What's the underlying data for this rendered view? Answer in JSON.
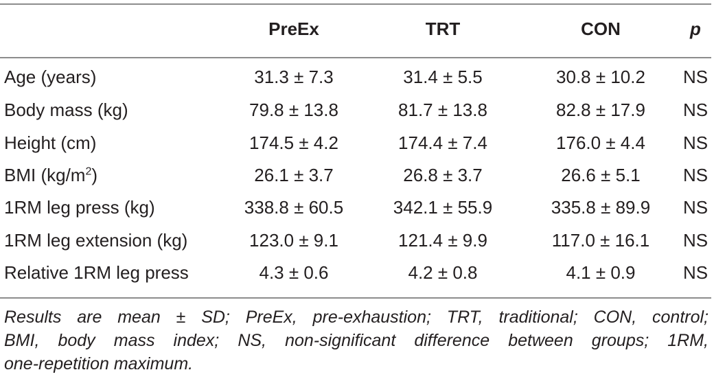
{
  "table": {
    "headers": [
      "PreEx",
      "TRT",
      "CON",
      "p"
    ],
    "rows": [
      {
        "label": "Age (years)",
        "preex": "31.3 ± 7.3",
        "trt": "31.4 ± 5.5",
        "con": "30.8 ± 10.2",
        "p": "NS"
      },
      {
        "label": "Body mass (kg)",
        "preex": "79.8 ± 13.8",
        "trt": "81.7 ± 13.8",
        "con": "82.8 ± 17.9",
        "p": "NS"
      },
      {
        "label": "Height (cm)",
        "preex": "174.5 ± 4.2",
        "trt": "174.4 ± 7.4",
        "con": "176.0 ± 4.4",
        "p": "NS"
      },
      {
        "label_main": "BMI (kg/m",
        "label_sup": "2",
        "label_end": ")",
        "preex": "26.1 ± 3.7",
        "trt": "26.8 ± 3.7",
        "con": "26.6 ± 5.1",
        "p": "NS"
      },
      {
        "label": "1RM leg press (kg)",
        "preex": "338.8 ± 60.5",
        "trt": "342.1 ± 55.9",
        "con": "335.8 ± 89.9",
        "p": "NS"
      },
      {
        "label": "1RM leg extension (kg)",
        "preex": "123.0 ± 9.1",
        "trt": "121.4 ± 9.9",
        "con": "117.0 ± 16.1",
        "p": "NS"
      },
      {
        "label": "Relative 1RM leg press",
        "preex": "4.3 ± 0.6",
        "trt": "4.2 ± 0.8",
        "con": "4.1 ± 0.9",
        "p": "NS"
      }
    ]
  },
  "footnote": {
    "line1": "Results are mean ± SD; PreEx, pre-exhaustion; TRT, traditional; CON, control;",
    "line2": "BMI, body mass index; NS, non-significant difference between groups; 1RM,",
    "line3": "one-repetition maximum."
  }
}
